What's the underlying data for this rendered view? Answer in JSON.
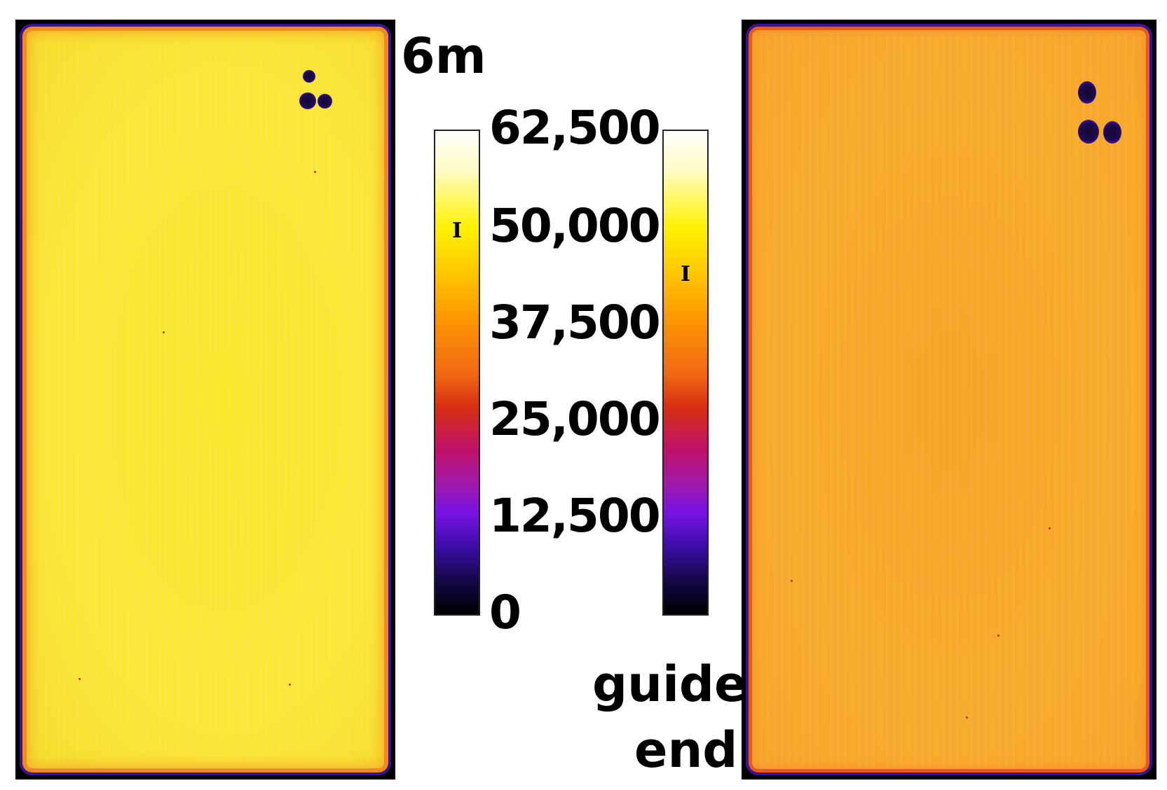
{
  "labels": {
    "left_image": "6m",
    "right_image_line1": "guide",
    "right_image_line2": "end"
  },
  "colorbar": {
    "ticks": [
      "62,500",
      "50,000",
      "37,500",
      "25,000",
      "12,500",
      "0"
    ],
    "left_marker": "I",
    "right_marker": "I",
    "left_marker_value": 48000,
    "right_marker_value": 44500,
    "colormap": "gnuplot-like: black-blue-purple-magenta-red-orange-yellow-white"
  },
  "colors": {
    "left_image_fill": "#f9e62c",
    "right_image_fill": "#f6a426",
    "frame": "#000000"
  }
}
